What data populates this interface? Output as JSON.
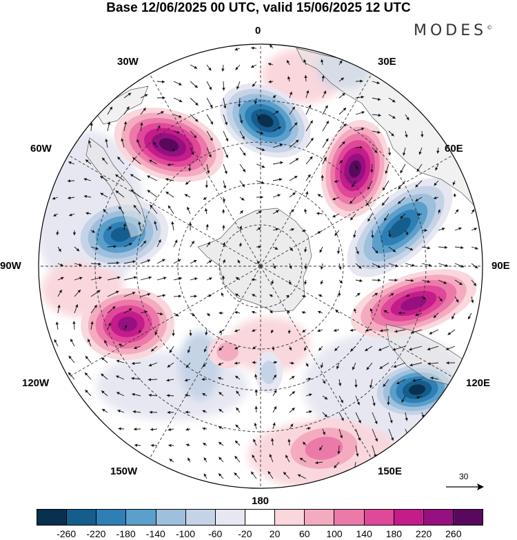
{
  "title": "Base 12/06/2025 00 UTC, valid 15/06/2025 12 UTC",
  "brand": "MODES",
  "brand_mark": "©",
  "longitude_labels": {
    "lon_0": "0",
    "lon_30e": "30E",
    "lon_60e": "60E",
    "lon_90e": "90E",
    "lon_120e": "120E",
    "lon_150e": "150E",
    "lon_180": "180",
    "lon_150w": "150W",
    "lon_120w": "120W",
    "lon_90w": "90W",
    "lon_60w": "60W",
    "lon_30w": "30W"
  },
  "reference_vector": "30",
  "colorbar": {
    "colors": [
      "#08304f",
      "#155d8c",
      "#2e7fb5",
      "#5b9fcb",
      "#9ec0dd",
      "#c5d3e7",
      "#e6e7f1",
      "#ffffff",
      "#f9d7dc",
      "#f4abc0",
      "#ec7aa9",
      "#e0489a",
      "#c41c8a",
      "#961080",
      "#58095e"
    ],
    "labels": [
      "-260",
      "-220",
      "-180",
      "-140",
      "-100",
      "-60",
      "-20",
      "20",
      "60",
      "100",
      "140",
      "180",
      "220",
      "260"
    ]
  },
  "colors": {
    "land": "#e6e6e6",
    "antarctica": "#ececec"
  }
}
